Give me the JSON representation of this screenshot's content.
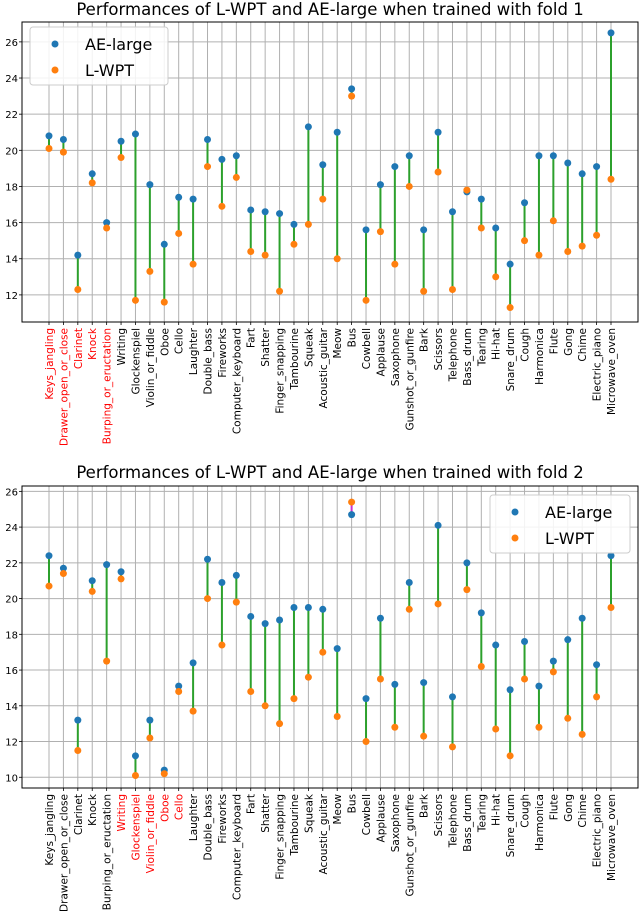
{
  "colors": {
    "ae": "#1f77b4",
    "lwpt": "#ff7f0e",
    "line_pos": "#2ca02c",
    "line_neg": "#cc33cc",
    "highlight_label": "#ff0000",
    "label": "#000000"
  },
  "chart_data": [
    {
      "type": "scatter",
      "title": "Performances of L-WPT and AE-large when trained with fold 1",
      "xlabel": "",
      "ylabel": "",
      "ylim": [
        10.5,
        27.1
      ],
      "yticks": [
        12,
        14,
        16,
        18,
        20,
        22,
        24,
        26
      ],
      "grid": true,
      "legend": "top-left",
      "categories": [
        "Keys_jangling",
        "Drawer_open_or_close",
        "Clarinet",
        "Knock",
        "Burping_or_eructation",
        "Writing",
        "Glockenspiel",
        "Violin_or_fiddle",
        "Oboe",
        "Cello",
        "Laughter",
        "Double_bass",
        "Fireworks",
        "Computer_keyboard",
        "Fart",
        "Shatter",
        "Finger_snapping",
        "Tambourine",
        "Squeak",
        "Acoustic_guitar",
        "Meow",
        "Bus",
        "Cowbell",
        "Applause",
        "Saxophone",
        "Gunshot_or_gunfire",
        "Bark",
        "Scissors",
        "Telephone",
        "Bass_drum",
        "Tearing",
        "Hi-hat",
        "Snare_drum",
        "Cough",
        "Harmonica",
        "Flute",
        "Gong",
        "Chime",
        "Electric_piano",
        "Microwave_oven"
      ],
      "highlighted_categories": [
        "Keys_jangling",
        "Drawer_open_or_close",
        "Clarinet",
        "Knock",
        "Burping_or_eructation"
      ],
      "series": [
        {
          "name": "AE-large",
          "values": [
            20.8,
            20.6,
            14.2,
            18.7,
            16.0,
            20.5,
            20.9,
            18.1,
            14.8,
            17.4,
            17.3,
            20.6,
            19.5,
            19.7,
            16.7,
            16.6,
            16.5,
            15.9,
            21.3,
            19.2,
            21.0,
            23.4,
            15.6,
            18.1,
            19.1,
            19.7,
            15.6,
            21.0,
            16.6,
            17.7,
            17.3,
            15.7,
            13.7,
            17.1,
            19.7,
            19.7,
            19.3,
            18.7,
            19.1,
            26.5
          ]
        },
        {
          "name": "L-WPT",
          "values": [
            20.1,
            19.9,
            12.3,
            18.2,
            15.7,
            19.6,
            11.7,
            13.3,
            11.6,
            15.4,
            13.7,
            19.1,
            16.9,
            18.5,
            14.4,
            14.2,
            12.2,
            14.8,
            15.9,
            17.3,
            14.0,
            23.0,
            11.7,
            15.5,
            13.7,
            18.0,
            12.2,
            18.8,
            12.3,
            17.8,
            15.7,
            13.0,
            11.3,
            15.0,
            14.2,
            16.1,
            14.4,
            14.7,
            15.3,
            18.4
          ]
        }
      ]
    },
    {
      "type": "scatter",
      "title": "Performances of L-WPT and AE-large when trained with fold 2",
      "xlabel": "",
      "ylabel": "",
      "ylim": [
        9.4,
        26.3
      ],
      "yticks": [
        10,
        12,
        14,
        16,
        18,
        20,
        22,
        24,
        26
      ],
      "grid": true,
      "legend": "top-right",
      "categories": [
        "Keys_jangling",
        "Drawer_open_or_close",
        "Clarinet",
        "Knock",
        "Burping_or_eructation",
        "Writing",
        "Glockenspiel",
        "Violin_or_fiddle",
        "Oboe",
        "Cello",
        "Laughter",
        "Double_bass",
        "Fireworks",
        "Computer_keyboard",
        "Fart",
        "Shatter",
        "Finger_snapping",
        "Tambourine",
        "Squeak",
        "Acoustic_guitar",
        "Meow",
        "Bus",
        "Cowbell",
        "Applause",
        "Saxophone",
        "Gunshot_or_gunfire",
        "Bark",
        "Scissors",
        "Telephone",
        "Bass_drum",
        "Tearing",
        "Hi-hat",
        "Snare_drum",
        "Cough",
        "Harmonica",
        "Flute",
        "Gong",
        "Chime",
        "Electric_piano",
        "Microwave_oven"
      ],
      "highlighted_categories": [
        "Writing",
        "Glockenspiel",
        "Violin_or_fiddle",
        "Oboe",
        "Cello"
      ],
      "series": [
        {
          "name": "AE-large",
          "values": [
            22.4,
            21.7,
            13.2,
            21.0,
            21.9,
            21.5,
            11.2,
            13.2,
            10.4,
            15.1,
            16.4,
            22.2,
            20.9,
            21.3,
            19.0,
            18.6,
            18.8,
            19.5,
            19.5,
            19.4,
            17.2,
            24.7,
            14.4,
            18.9,
            15.2,
            20.9,
            15.3,
            24.1,
            14.5,
            22.0,
            19.2,
            17.4,
            14.9,
            17.6,
            15.1,
            16.5,
            17.7,
            18.9,
            16.3,
            22.4
          ]
        },
        {
          "name": "L-WPT",
          "values": [
            20.7,
            21.4,
            11.5,
            20.4,
            16.5,
            21.1,
            10.1,
            12.2,
            10.2,
            14.8,
            13.7,
            20.0,
            17.4,
            19.8,
            14.8,
            14.0,
            13.0,
            14.4,
            15.6,
            17.0,
            13.4,
            25.4,
            12.0,
            15.5,
            12.8,
            19.4,
            12.3,
            19.7,
            11.7,
            20.5,
            16.2,
            12.7,
            11.2,
            15.5,
            12.8,
            15.9,
            13.3,
            12.4,
            14.5,
            19.5
          ]
        }
      ]
    }
  ]
}
